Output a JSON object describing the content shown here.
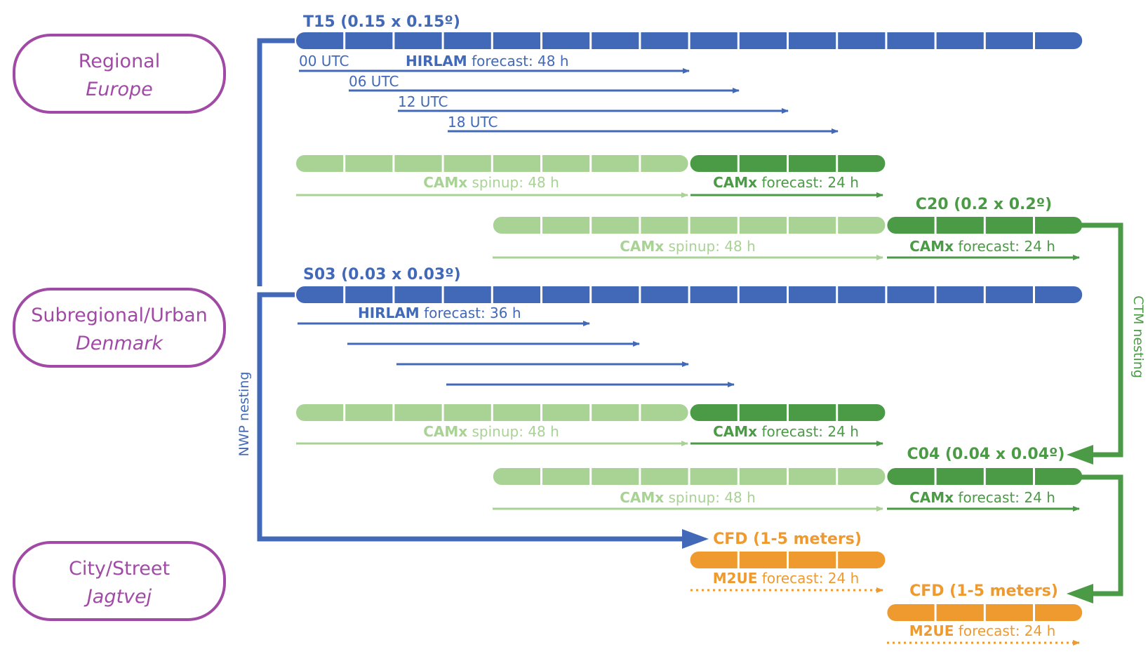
{
  "colors": {
    "purple": "#a04aa6",
    "blue": "#4169b8",
    "light_green": "#a8d394",
    "dark_green": "#4a9a46",
    "orange": "#ee9a2f"
  },
  "scales": {
    "regional": {
      "name": "Regional",
      "region": "Europe"
    },
    "subregional": {
      "name": "Subregional/Urban",
      "region": "Denmark"
    },
    "city": {
      "name": "City/Street",
      "region": "Jagtvej"
    }
  },
  "nesting": {
    "nwp": "NWP nesting",
    "ctm": "CTM nesting"
  },
  "t15": {
    "title": "T15 (0.15 x 0.15º)",
    "model": "HIRLAM",
    "forecast": " forecast: 48 h",
    "runs": [
      "00 UTC",
      "06 UTC",
      "12 UTC",
      "18 UTC"
    ]
  },
  "camx_row1": {
    "spin_model": "CAMx",
    "spin_text": " spinup: 48 h",
    "fc_model": "CAMx",
    "fc_text": " forecast: 24 h"
  },
  "c20": {
    "title": "C20 (0.2 x 0.2º)",
    "spin_model": "CAMx",
    "spin_text": " spinup: 48 h",
    "fc_model": "CAMx",
    "fc_text": " forecast: 24 h"
  },
  "s03": {
    "title": "S03 (0.03 x 0.03º)",
    "model": "HIRLAM",
    "forecast": " forecast: 36 h"
  },
  "camx_row2": {
    "spin_model": "CAMx",
    "spin_text": " spinup: 48 h",
    "fc_model": "CAMx",
    "fc_text": " forecast: 24 h"
  },
  "c04": {
    "title": "C04 (0.04 x 0.04º)",
    "spin_model": "CAMx",
    "spin_text": " spinup: 48 h",
    "fc_model": "CAMx",
    "fc_text": " forecast: 24 h"
  },
  "cfd1": {
    "title": "CFD (1-5 meters)",
    "model": "M2UE",
    "forecast": " forecast: 24 h"
  },
  "cfd2": {
    "title": "CFD (1-5 meters)",
    "model": "M2UE",
    "forecast": " forecast: 24 h"
  }
}
